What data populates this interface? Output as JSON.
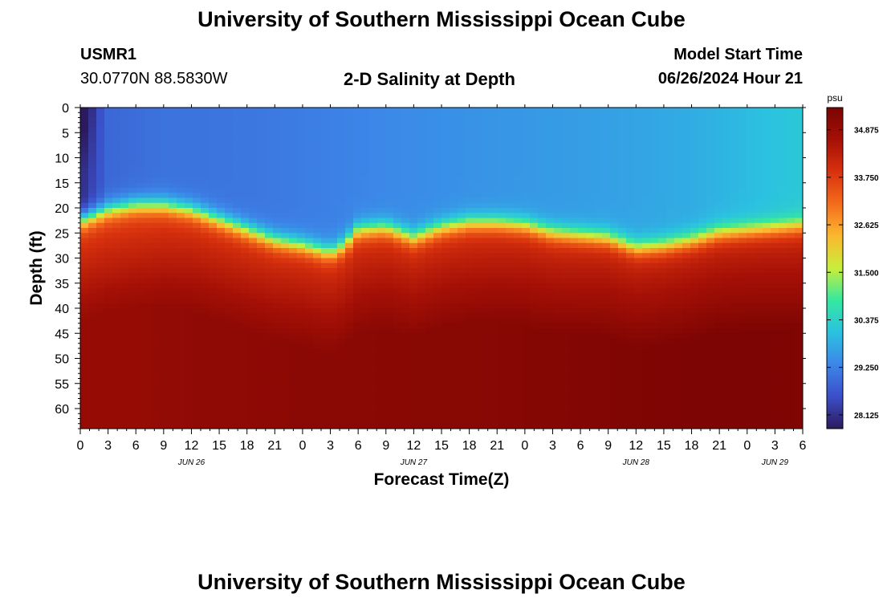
{
  "header": {
    "title": "University of Southern Mississippi Ocean Cube",
    "station_id": "USMR1",
    "station_coords": "30.0770N  88.5830W",
    "plot_title": "2-D Salinity at Depth",
    "model_start_label": "Model Start Time",
    "model_start_value": "06/26/2024 Hour 21"
  },
  "footer": {
    "title": "University of Southern Mississippi Ocean Cube"
  },
  "colorbar": {
    "unit": "psu",
    "min": 27.8,
    "max": 35.4,
    "tick_values": [
      28.125,
      29.25,
      30.375,
      31.5,
      32.625,
      33.75,
      34.875
    ],
    "tick_labels": [
      "28.125",
      "29.250",
      "30.375",
      "31.500",
      "32.625",
      "33.750",
      "34.875"
    ],
    "stops": [
      "#2c1a5e",
      "#3b4fc8",
      "#3c86e8",
      "#2bc2e0",
      "#35e8a0",
      "#c8ee3a",
      "#fbb830",
      "#f46c1c",
      "#d8320e",
      "#a51006",
      "#7a0403"
    ]
  },
  "chart_data": {
    "type": "heatmap",
    "title": "2-D Salinity at Depth",
    "xlabel": "Forecast Time(Z)",
    "ylabel": "Depth (ft)",
    "x_hours": [
      0,
      3,
      6,
      9,
      12,
      15,
      18,
      21,
      24,
      27,
      30,
      33,
      36,
      39,
      42,
      45,
      48,
      51,
      54,
      57,
      60,
      63,
      66,
      69,
      72,
      75,
      78
    ],
    "x_tick_labels": [
      "0",
      "3",
      "6",
      "9",
      "12",
      "15",
      "18",
      "21",
      "0",
      "3",
      "6",
      "9",
      "12",
      "15",
      "18",
      "21",
      "0",
      "3",
      "6",
      "9",
      "12",
      "15",
      "18",
      "21",
      "0",
      "3",
      "6"
    ],
    "date_labels": [
      {
        "hour": 12,
        "label": "JUN 26"
      },
      {
        "hour": 36,
        "label": "JUN 27"
      },
      {
        "hour": 60,
        "label": "JUN 28"
      },
      {
        "hour": 75,
        "label": "JUN 29"
      }
    ],
    "xlim": [
      0,
      78
    ],
    "ylim": [
      0,
      64
    ],
    "y_ticks": [
      0,
      5,
      10,
      15,
      20,
      25,
      30,
      35,
      40,
      45,
      50,
      55,
      60
    ],
    "y_tick_labels": [
      "0",
      "5",
      "10",
      "15",
      "20",
      "25",
      "30",
      "35",
      "40",
      "45",
      "50",
      "55",
      "60"
    ],
    "halocline_depth_ft": {
      "hours": [
        0,
        3,
        6,
        9,
        12,
        15,
        18,
        21,
        24,
        27,
        28.5,
        30,
        33,
        36,
        39,
        42,
        45,
        48,
        51,
        54,
        57,
        60,
        63,
        66,
        69,
        72,
        75,
        78
      ],
      "depths": [
        22.5,
        20.5,
        19.5,
        19.5,
        20.5,
        22.5,
        24.5,
        26.5,
        27.5,
        29,
        27.5,
        24.5,
        24,
        26,
        24,
        23,
        23,
        23.5,
        25,
        25.5,
        26,
        28,
        27.5,
        26.5,
        25,
        24.5,
        24,
        23.5
      ]
    },
    "surface_salinity_psu": {
      "hours": [
        0,
        3,
        9,
        18,
        27,
        36,
        48,
        57,
        66,
        72,
        78
      ],
      "values": [
        28.0,
        28.9,
        29.05,
        29.1,
        29.25,
        29.4,
        29.55,
        29.65,
        29.8,
        30.0,
        30.2
      ]
    },
    "deep_salinity_psu": {
      "hours": [
        0,
        6,
        12,
        18,
        24,
        30,
        36,
        42,
        48,
        54,
        60,
        66,
        72,
        78
      ],
      "values": [
        34.9,
        34.9,
        35.0,
        35.05,
        35.1,
        35.1,
        35.15,
        35.15,
        35.2,
        35.25,
        35.3,
        35.35,
        35.35,
        35.3
      ]
    }
  }
}
